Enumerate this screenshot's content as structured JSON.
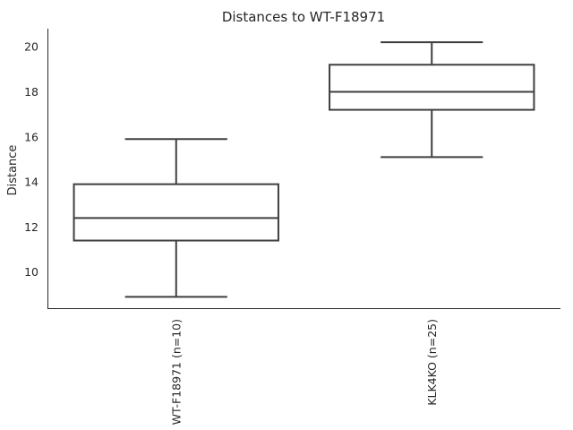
{
  "chart_data": {
    "type": "box",
    "title": "Distances to WT-F18971",
    "xlabel": "",
    "ylabel": "Distance",
    "ylim": [
      8.4,
      20.8
    ],
    "yticks": [
      10,
      12,
      14,
      16,
      18,
      20
    ],
    "categories": [
      "WT-F18971 (n=10)",
      "KLK4KO (n=25)"
    ],
    "boxes": [
      {
        "category": "WT-F18971 (n=10)",
        "whisker_low": 8.9,
        "q1": 11.4,
        "median": 12.4,
        "q3": 13.9,
        "whisker_high": 15.9
      },
      {
        "category": "KLK4KO (n=25)",
        "whisker_low": 15.1,
        "q1": 17.2,
        "median": 18.0,
        "q3": 19.2,
        "whisker_high": 20.2
      }
    ],
    "grid": false,
    "colors": {
      "box_stroke": "#3f3f3f",
      "axis": "#262626",
      "text": "#262626"
    }
  }
}
